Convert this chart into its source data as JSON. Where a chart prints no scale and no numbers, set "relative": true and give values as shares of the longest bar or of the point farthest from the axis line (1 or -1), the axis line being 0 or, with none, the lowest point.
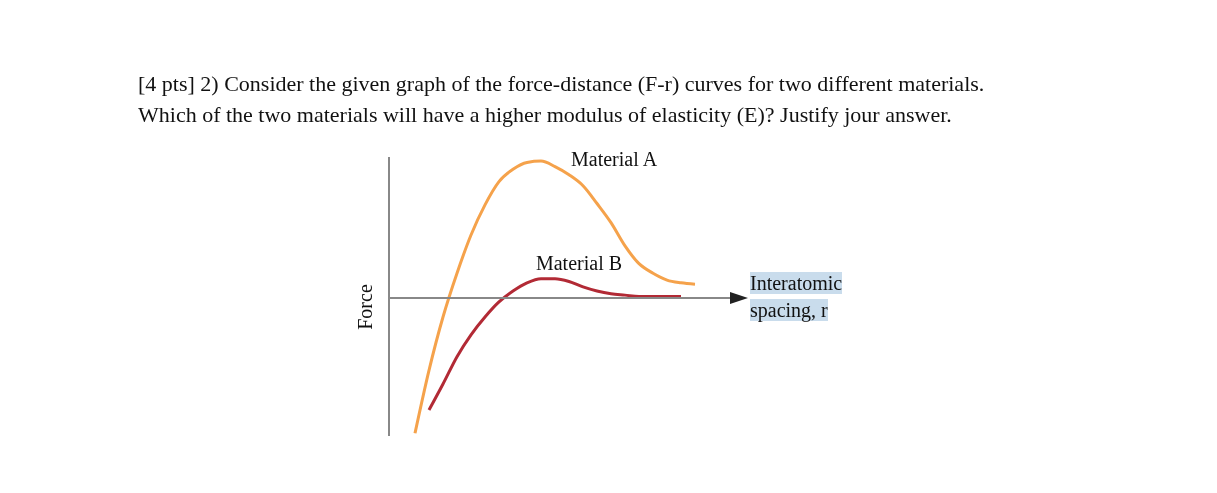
{
  "chart_data": {
    "type": "line",
    "title": "[4 pts] 2) Consider the given graph of the force-distance (F-r) curves for two different materials. Which of the two materials will have a higher modulus of elasticity (E)? Justify jour answer.",
    "xlabel": "Interatomic spacing, r",
    "ylabel": "Force",
    "relative": true,
    "categories": [
      null,
      null,
      null,
      null,
      null,
      null,
      null,
      null,
      null,
      null,
      null,
      null,
      null,
      null,
      null,
      null,
      null,
      null,
      null,
      null,
      null
    ],
    "series": [
      {
        "name": "Material A",
        "color": "#f5a24b",
        "values": [
          -0.99,
          -0.53,
          -0.14,
          0.18,
          0.46,
          0.68,
          0.85,
          0.94,
          0.99,
          1,
          0.96,
          0.9,
          0.82,
          0.69,
          0.55,
          0.38,
          0.25,
          0.18,
          0.13,
          0.11,
          0.1
        ]
      },
      {
        "name": "Material B",
        "color": "#b22a35",
        "values": [
          null,
          -0.82,
          -0.63,
          -0.43,
          -0.27,
          -0.14,
          -0.03,
          0.05,
          0.11,
          0.14,
          0.14,
          0.12,
          0.08,
          0.05,
          0.03,
          0.02,
          0.01,
          0.01,
          0.01,
          0.01,
          null
        ]
      }
    ]
  }
}
